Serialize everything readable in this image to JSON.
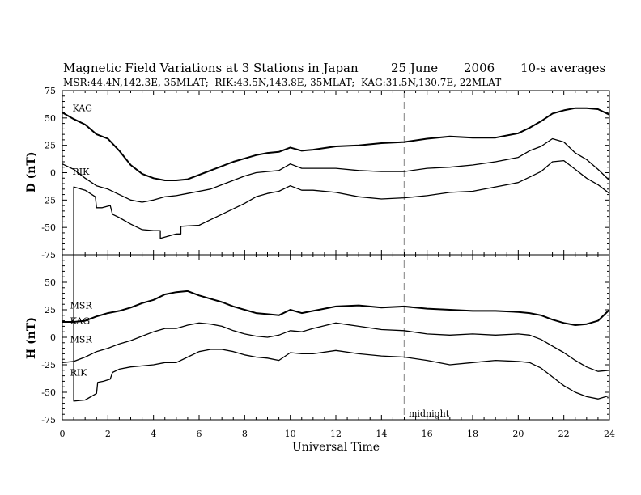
{
  "chart_data": {
    "type": "line",
    "title_parts": [
      "Magnetic Field Variations at 3 Stations in Japan",
      "25 June",
      "2006",
      "10-s averages"
    ],
    "subtitle": "MSR:44.4N,142.3E, 35MLAT;  RIK:43.5N,143.8E, 35MLAT;  KAG:31.5N,130.7E, 22MLAT",
    "xlabel": "Universal Time",
    "xlim": [
      0,
      24
    ],
    "xticks": [
      "0",
      "2",
      "4",
      "6",
      "8",
      "10",
      "12",
      "14",
      "16",
      "18",
      "20",
      "22",
      "24"
    ],
    "annotation": {
      "text": "midnight",
      "x": 15
    },
    "panels": [
      {
        "ylabel": "D (nT)",
        "ylim": [
          -75,
          75
        ],
        "yticks": [
          "75",
          "50",
          "25",
          "0",
          "-25",
          "-50",
          "-75"
        ],
        "series": [
          {
            "name": "KAG",
            "x": [
              0,
              0.5,
              1,
              1.5,
              2,
              2.5,
              3,
              3.5,
              4,
              4.5,
              5,
              5.5,
              6,
              6.5,
              7,
              7.5,
              8,
              8.5,
              9,
              9.5,
              10,
              10.5,
              11,
              12,
              13,
              14,
              15,
              16,
              17,
              18,
              19,
              20,
              20.5,
              21,
              21.5,
              22,
              22.5,
              23,
              23.5,
              24
            ],
            "values": [
              55,
              49,
              44,
              35,
              31,
              20,
              7,
              -1,
              -5,
              -7,
              -7,
              -6,
              -2,
              2,
              6,
              10,
              13,
              16,
              18,
              19,
              23,
              20,
              21,
              24,
              25,
              27,
              28,
              31,
              33,
              32,
              32,
              36,
              41,
              47,
              54,
              57,
              59,
              59,
              58,
              53
            ]
          },
          {
            "name": "MSR",
            "x": [
              0,
              0.5,
              1,
              1.5,
              2,
              2.5,
              3,
              3.5,
              4,
              4.5,
              5,
              5.5,
              6,
              6.5,
              7,
              7.5,
              8,
              8.5,
              9,
              9.5,
              10,
              10.5,
              11,
              12,
              13,
              14,
              15,
              16,
              17,
              18,
              19,
              20,
              20.5,
              21,
              21.5,
              22,
              22.5,
              23,
              23.5,
              24
            ],
            "values": [
              8,
              3,
              -5,
              -12,
              -15,
              -20,
              -25,
              -27,
              -25,
              -22,
              -21,
              -19,
              -17,
              -15,
              -11,
              -7,
              -3,
              0,
              1,
              2,
              8,
              4,
              4,
              4,
              2,
              1,
              1,
              4,
              5,
              7,
              10,
              14,
              20,
              24,
              31,
              28,
              18,
              12,
              3,
              -7
            ]
          },
          {
            "name": "RIK",
            "x": [
              0.5,
              0.5,
              1,
              1.45,
              1.5,
              1.75,
              2.1,
              2.2,
              2.5,
              3,
              3.5,
              4,
              4.3,
              4.3,
              5,
              5.2,
              5.2,
              6,
              6.5,
              7,
              7.5,
              8,
              8.5,
              9,
              9.5,
              10,
              10.5,
              11,
              12,
              13,
              14,
              15,
              16,
              17,
              18,
              19,
              20,
              20.5,
              21,
              21.5,
              22,
              22.5,
              23,
              23.5,
              24
            ],
            "values": [
              -75,
              -13,
              -16,
              -22,
              -32,
              -32,
              -30,
              -38,
              -41,
              -47,
              -52,
              -53,
              -53,
              -60,
              -56,
              -56,
              -49,
              -48,
              -43,
              -38,
              -33,
              -28,
              -22,
              -19,
              -17,
              -12,
              -16,
              -16,
              -18,
              -22,
              -24,
              -23,
              -21,
              -18,
              -17,
              -13,
              -9,
              -4,
              1,
              10,
              11,
              3,
              -5,
              -11,
              -19
            ]
          }
        ]
      },
      {
        "ylabel": "H (nT)",
        "ylim": [
          -75,
          75
        ],
        "yticks": [
          "75",
          "50",
          "25",
          "0",
          "-25",
          "-50",
          "-75"
        ],
        "series": [
          {
            "name": "KAG",
            "x": [
              0,
              0.5,
              1,
              1.5,
              2,
              2.5,
              3,
              3.5,
              4,
              4.5,
              5,
              5.5,
              6,
              6.5,
              7,
              7.5,
              8,
              8.5,
              9,
              9.5,
              10,
              10.5,
              11,
              12,
              13,
              14,
              15,
              16,
              17,
              18,
              19,
              20,
              20.5,
              21,
              21.5,
              22,
              22.5,
              23,
              23.5,
              24
            ],
            "values": [
              14,
              14,
              15,
              19,
              22,
              24,
              27,
              31,
              34,
              39,
              41,
              42,
              38,
              35,
              32,
              28,
              25,
              22,
              21,
              20,
              25,
              22,
              24,
              28,
              29,
              27,
              28,
              26,
              25,
              24,
              24,
              23,
              22,
              20,
              16,
              13,
              11,
              12,
              15,
              25
            ]
          },
          {
            "name": "MSR",
            "x": [
              0,
              0.5,
              1,
              1.5,
              2,
              2.5,
              3,
              3.5,
              4,
              4.5,
              5,
              5.5,
              6,
              6.5,
              7,
              7.5,
              8,
              8.5,
              9,
              9.5,
              10,
              10.5,
              11,
              12,
              13,
              14,
              15,
              16,
              17,
              18,
              19,
              20,
              20.5,
              21,
              21.5,
              22,
              22.5,
              23,
              23.5,
              24
            ],
            "values": [
              -23,
              -22,
              -18,
              -13,
              -10,
              -6,
              -3,
              1,
              5,
              8,
              8,
              11,
              13,
              12,
              10,
              6,
              3,
              1,
              0,
              2,
              6,
              5,
              8,
              13,
              10,
              7,
              6,
              3,
              2,
              3,
              2,
              3,
              2,
              -2,
              -8,
              -14,
              -21,
              -27,
              -31,
              -30
            ]
          },
          {
            "name": "RIK",
            "x": [
              0.5,
              0.5,
              1,
              1.5,
              1.55,
              1.8,
              2.1,
              2.2,
              2.5,
              3,
              3.5,
              4,
              4.5,
              5,
              5.5,
              6,
              6.5,
              7,
              7.5,
              8,
              8.5,
              9,
              9.5,
              10,
              10.5,
              11,
              12,
              13,
              14,
              15,
              16,
              17,
              18,
              19,
              20,
              20.5,
              21,
              21.5,
              22,
              22.5,
              23,
              23.5,
              24
            ],
            "values": [
              75,
              -58,
              -57,
              -51,
              -41,
              -40,
              -38,
              -32,
              -29,
              -27,
              -26,
              -25,
              -23,
              -23,
              -18,
              -13,
              -11,
              -11,
              -13,
              -16,
              -18,
              -19,
              -21,
              -14,
              -15,
              -15,
              -12,
              -15,
              -17,
              -18,
              -21,
              -25,
              -23,
              -21,
              -22,
              -23,
              -28,
              -36,
              -44,
              -50,
              -54,
              -56,
              -53
            ]
          }
        ]
      }
    ],
    "labels": [
      {
        "text": "KAG",
        "panel": 0,
        "x": 0.3,
        "y": 59
      },
      {
        "text": "RIK",
        "panel": 0,
        "x": 0.3,
        "y": 1
      },
      {
        "text": "MSR",
        "panel": 1,
        "x": 0.2,
        "y": 29
      },
      {
        "text": "KAG",
        "panel": 1,
        "x": 0.2,
        "y": 15
      },
      {
        "text": "MSR",
        "panel": 1,
        "x": 0.2,
        "y": -2
      },
      {
        "text": "RIK",
        "panel": 1,
        "x": 0.2,
        "y": -32
      }
    ]
  }
}
